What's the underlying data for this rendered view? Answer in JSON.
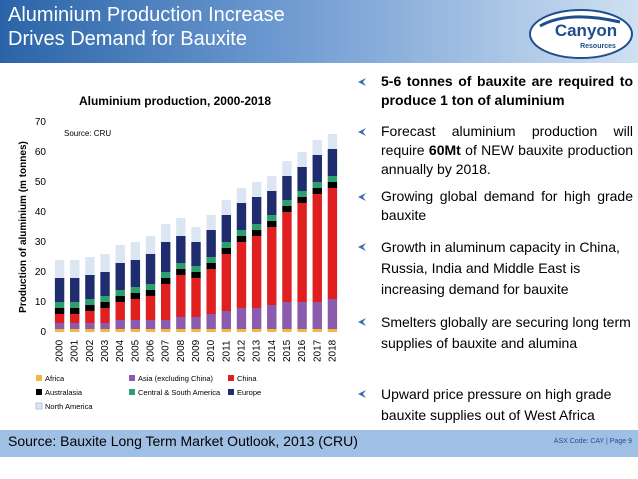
{
  "title": {
    "line1": "Aluminium Production Increase",
    "line2": "Drives Demand for Bauxite"
  },
  "logo": {
    "name": "Canyon",
    "sub": "Resources"
  },
  "chart_data": {
    "type": "bar",
    "stacked": true,
    "title": "Aluminium production, 2000-2018",
    "annotation": "Source: CRU",
    "ylabel": "Production of aluminium (m tonnes)",
    "xlabel": "",
    "ylim": [
      0,
      70
    ],
    "yticks": [
      0,
      10,
      20,
      30,
      40,
      50,
      60,
      70
    ],
    "grid": false,
    "legend_position": "bottom",
    "categories": [
      "2000",
      "2001",
      "2002",
      "2003",
      "2004",
      "2005",
      "2006",
      "2007",
      "2008",
      "2009",
      "2010",
      "2011",
      "2012",
      "2013",
      "2014",
      "2015",
      "2016",
      "2017",
      "2018"
    ],
    "series": [
      {
        "name": "Africa",
        "color": "#f0b83c",
        "values": [
          1,
          1,
          1,
          1,
          1,
          1,
          1,
          1,
          1,
          1,
          1,
          1,
          1,
          1,
          1,
          1,
          1,
          1,
          1
        ]
      },
      {
        "name": "Asia (excluding China)",
        "color": "#8b5bb0",
        "values": [
          2,
          2,
          2,
          2,
          3,
          3,
          3,
          3,
          4,
          4,
          5,
          6,
          7,
          7,
          8,
          9,
          9,
          9,
          10
        ]
      },
      {
        "name": "China",
        "color": "#e02020",
        "values": [
          3,
          3,
          4,
          5,
          6,
          7,
          8,
          12,
          14,
          13,
          15,
          19,
          22,
          24,
          26,
          30,
          33,
          36,
          37
        ]
      },
      {
        "name": "Australasia",
        "color": "#000000",
        "values": [
          2,
          2,
          2,
          2,
          2,
          2,
          2,
          2,
          2,
          2,
          2,
          2,
          2,
          2,
          2,
          2,
          2,
          2,
          2
        ]
      },
      {
        "name": "Central & South America",
        "color": "#2e9e6e",
        "values": [
          2,
          2,
          2,
          2,
          2,
          2,
          2,
          2,
          2,
          2,
          2,
          2,
          2,
          2,
          2,
          2,
          2,
          2,
          2
        ]
      },
      {
        "name": "Europe",
        "color": "#1f2d6e",
        "values": [
          8,
          8,
          8,
          8,
          9,
          9,
          10,
          10,
          9,
          8,
          9,
          9,
          9,
          9,
          8,
          8,
          8,
          9,
          9
        ]
      },
      {
        "name": "North America",
        "color": "#dce6f2",
        "values": [
          6,
          6,
          6,
          6,
          6,
          6,
          6,
          6,
          6,
          5,
          5,
          5,
          5,
          5,
          5,
          5,
          5,
          5,
          5
        ]
      }
    ]
  },
  "bullets": [
    {
      "text": "5-6 tonnes of bauxite are required to produce 1 ton of aluminium"
    },
    {
      "pre": "Forecast aluminium production will require ",
      "bold": "60Mt",
      "post": " of NEW bauxite production annually by 2018."
    },
    {
      "text": "Growing global demand for high grade bauxite"
    },
    {
      "text": "Growth in aluminum capacity in China, Russia, India and Middle East is increasing demand for bauxite"
    },
    {
      "text": "Smelters globally are securing long term supplies of bauxite and alumina"
    },
    {
      "text": "Upward price pressure on high grade bauxite supplies out of West Africa"
    }
  ],
  "source": "Source: Bauxite Long Term Market Outlook, 2013 (CRU)",
  "footer": "ASX Code: CAY  |  Page 9",
  "colors": {
    "accent": "#2a64a8",
    "bullet": "#3a6fb0",
    "source_bar": "#9fc0e4"
  }
}
